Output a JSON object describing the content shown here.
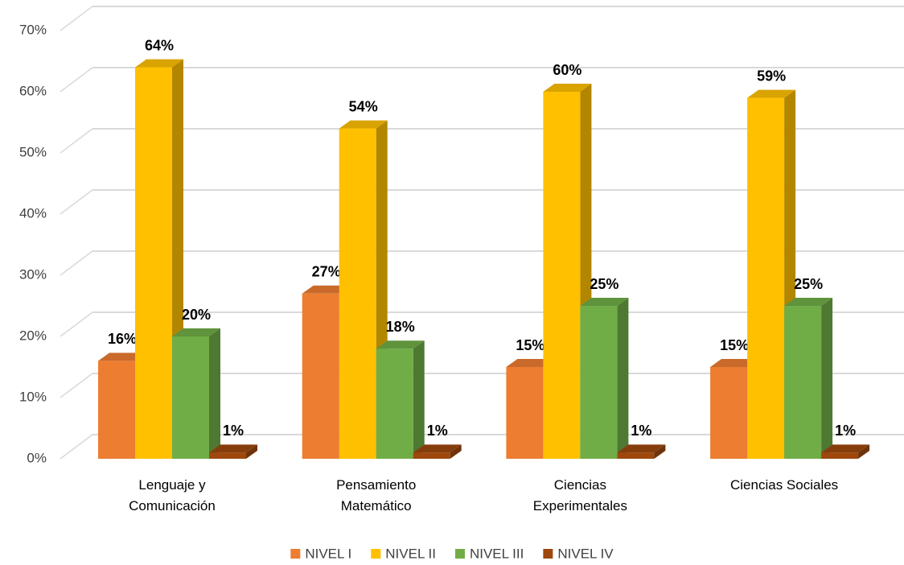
{
  "chart_data": {
    "type": "bar3d",
    "categories": [
      "Lenguaje y Comunicación",
      "Pensamiento Matemático",
      "Ciencias Experimentales",
      "Ciencias Sociales"
    ],
    "series": [
      {
        "name": "NIVEL I",
        "color": "#ed7d31",
        "values": [
          16,
          27,
          15,
          15
        ],
        "value_labels": [
          "16%",
          "27%",
          "15%",
          "15%"
        ]
      },
      {
        "name": "NIVEL II",
        "color": "#ffc000",
        "values": [
          64,
          54,
          60,
          59
        ],
        "value_labels": [
          "64%",
          "54%",
          "60%",
          "59%"
        ]
      },
      {
        "name": "NIVEL III",
        "color": "#70ad47",
        "values": [
          20,
          18,
          25,
          25
        ],
        "value_labels": [
          "20%",
          "18%",
          "25%",
          "25%"
        ]
      },
      {
        "name": "NIVEL IV",
        "color": "#9e480e",
        "values": [
          1,
          1,
          1,
          1
        ],
        "value_labels": [
          "1%",
          "1%",
          "1%",
          "1%"
        ]
      }
    ],
    "ylim": [
      0,
      70
    ],
    "yticks": [
      {
        "value": 0,
        "label": "0%"
      },
      {
        "value": 10,
        "label": "10%"
      },
      {
        "value": 20,
        "label": "20%"
      },
      {
        "value": 30,
        "label": "30%"
      },
      {
        "value": 40,
        "label": "40%"
      },
      {
        "value": 50,
        "label": "50%"
      },
      {
        "value": 60,
        "label": "60%"
      },
      {
        "value": 70,
        "label": "70%"
      }
    ],
    "grid": true,
    "legend": "bottom"
  }
}
